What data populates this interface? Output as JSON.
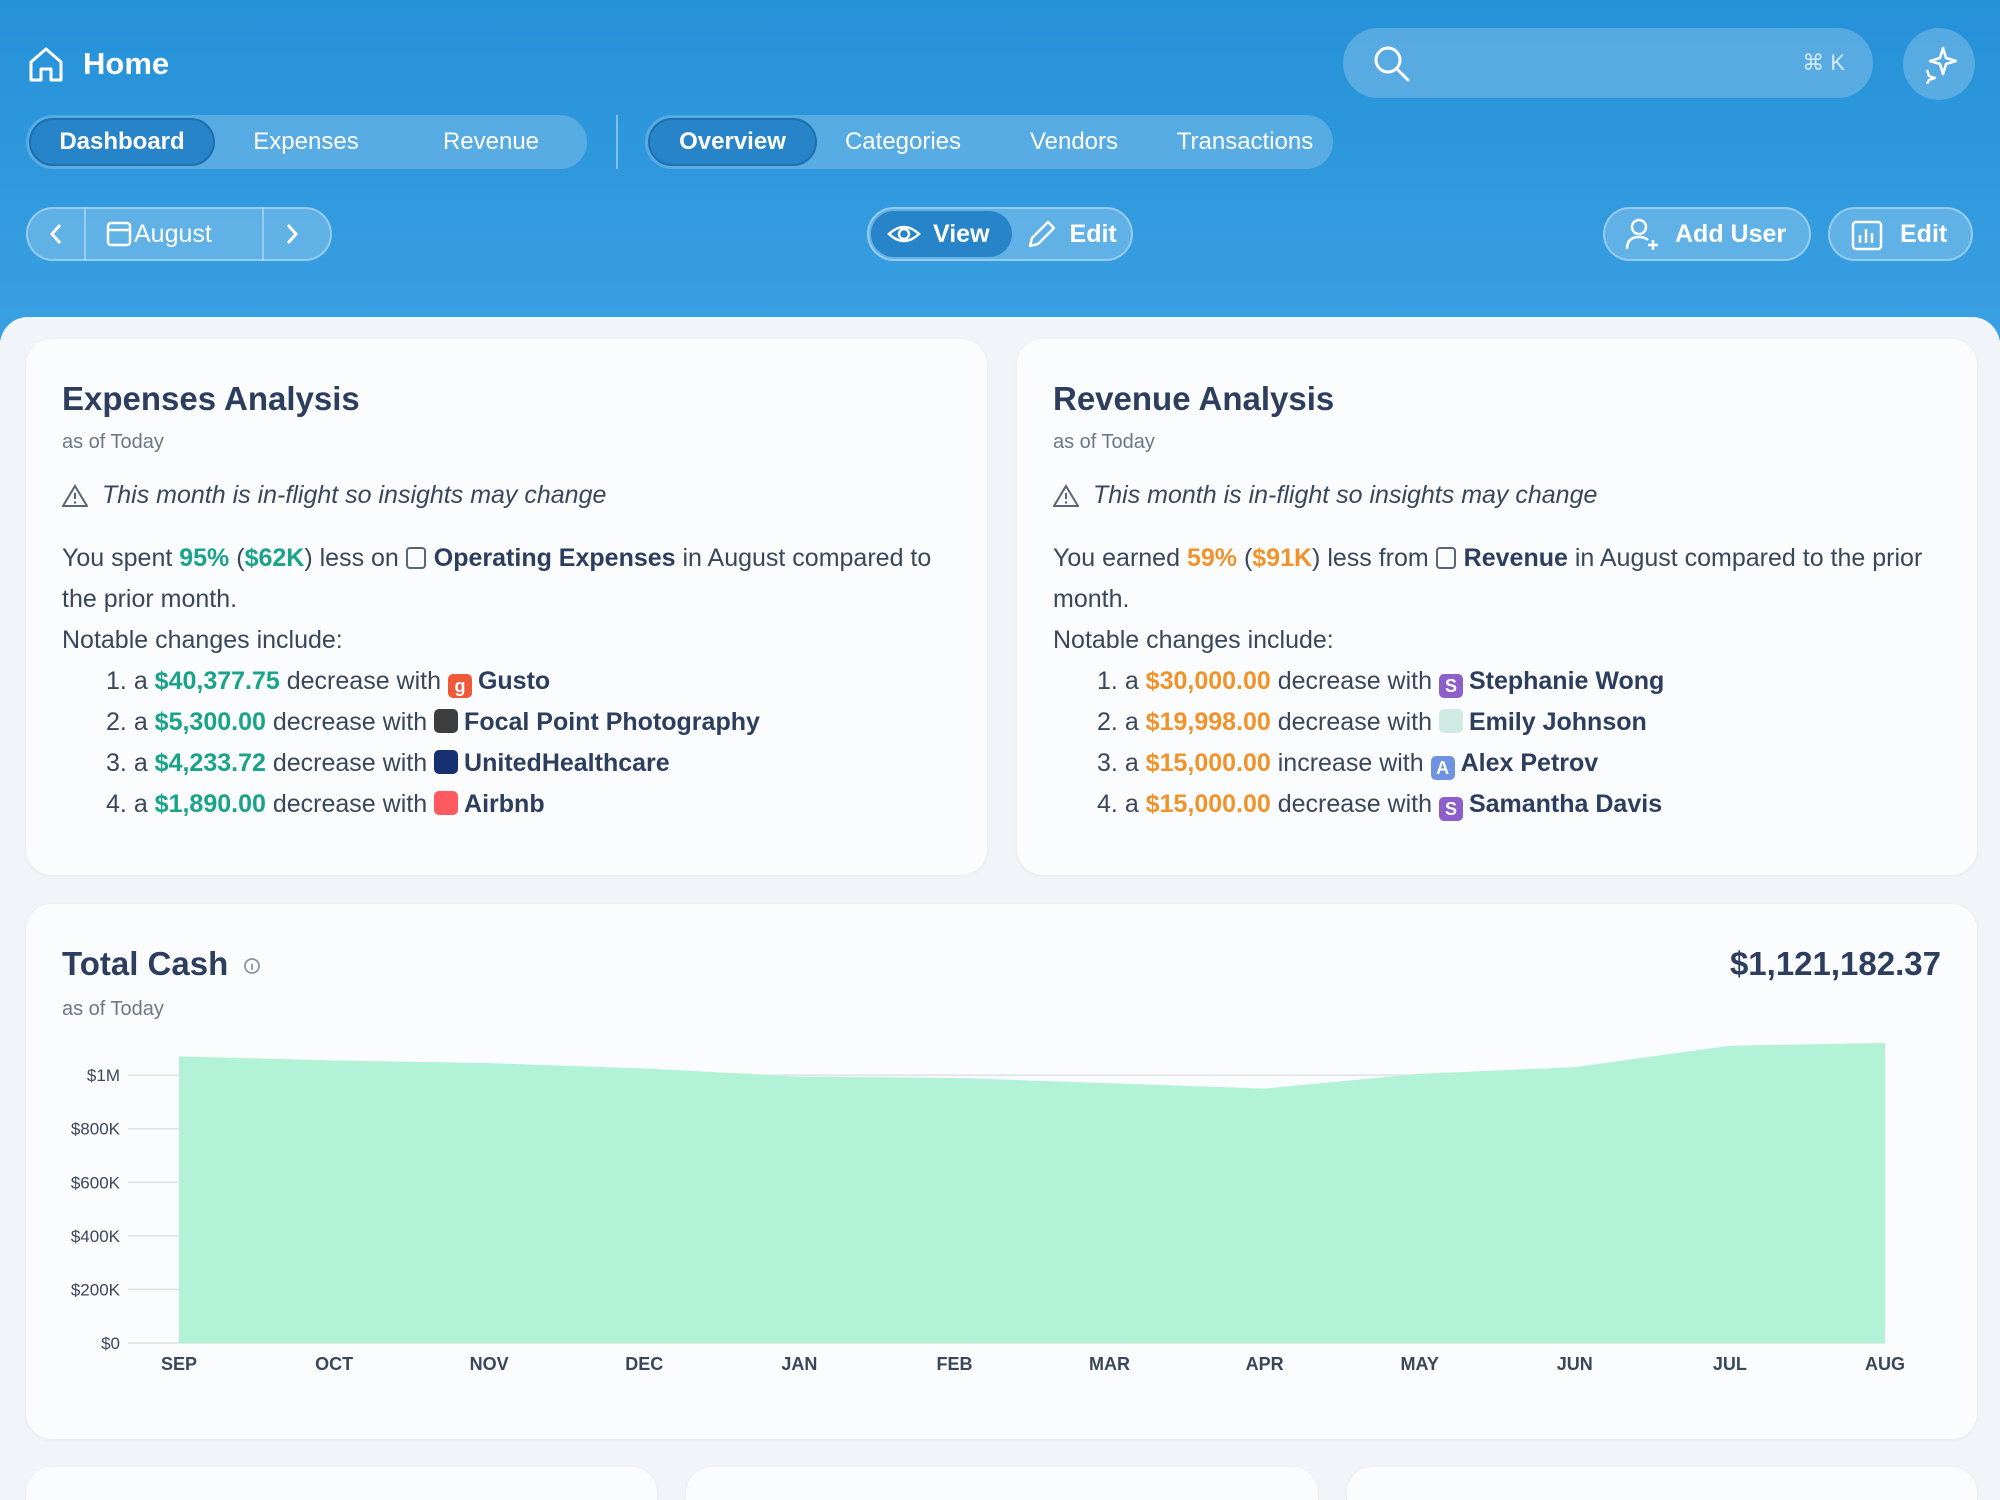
{
  "header": {
    "title": "Home",
    "search_shortcut": "⌘ K"
  },
  "tabs": {
    "primary": [
      "Dashboard",
      "Expenses",
      "Revenue"
    ],
    "secondary": [
      "Overview",
      "Categories",
      "Vendors",
      "Transactions"
    ]
  },
  "toolbar": {
    "month": "August",
    "view": "View",
    "edit": "Edit",
    "add_user": "Add User",
    "edit_chart": "Edit"
  },
  "cards": [
    {
      "title": "Expenses Analysis",
      "subtitle": "as of Today",
      "warning": "This month is in-flight so insights may change",
      "accent": "#19a389",
      "summary": {
        "lead": "You spent",
        "percent": "95%",
        "open": "(",
        "amount": "$62K",
        "close": ")",
        "connector": "less on",
        "category": "Operating Expenses",
        "tail": "in August compared to the prior month."
      },
      "notable": "Notable changes include:",
      "items": [
        {
          "number": "1.",
          "article": "a",
          "amount": "$40,377.75",
          "phrase": "decrease with",
          "name": "Gusto",
          "badge": {
            "color": "#f05a3a",
            "letter": "g"
          }
        },
        {
          "number": "2.",
          "article": "a",
          "amount": "$5,300.00",
          "phrase": "decrease with",
          "name": "Focal Point Photography",
          "badge": {
            "color": "#3d3d3d"
          }
        },
        {
          "number": "3.",
          "article": "a",
          "amount": "$4,233.72",
          "phrase": "decrease with",
          "name": "UnitedHealthcare",
          "badge": {
            "color": "#17306f"
          }
        },
        {
          "number": "4.",
          "article": "a",
          "amount": "$1,890.00",
          "phrase": "decrease with",
          "name": "Airbnb",
          "badge": {
            "color": "#ff5a5f"
          }
        }
      ]
    },
    {
      "title": "Revenue Analysis",
      "subtitle": "as of Today",
      "warning": "This month is in-flight so insights may change",
      "accent": "#f0932b",
      "summary": {
        "lead": "You earned",
        "percent": "59%",
        "open": "(",
        "amount": "$91K",
        "close": ")",
        "connector": "less from",
        "category": "Revenue",
        "tail": "in August compared to the prior month."
      },
      "notable": "Notable changes include:",
      "items": [
        {
          "number": "1.",
          "article": "a",
          "amount": "$30,000.00",
          "phrase": "decrease with",
          "name": "Stephanie Wong",
          "badge": {
            "color": "#8e5fc9",
            "letter": "S"
          }
        },
        {
          "number": "2.",
          "article": "a",
          "amount": "$19,998.00",
          "phrase": "decrease with",
          "name": "Emily Johnson",
          "badge": {
            "color": "#cfe9e3"
          }
        },
        {
          "number": "3.",
          "article": "a",
          "amount": "$15,000.00",
          "phrase": "increase with",
          "name": "Alex Petrov",
          "badge": {
            "color": "#6f92e3",
            "letter": "A"
          }
        },
        {
          "number": "4.",
          "article": "a",
          "amount": "$15,000.00",
          "phrase": "decrease with",
          "name": "Samantha Davis",
          "badge": {
            "color": "#8e5fc9",
            "letter": "S"
          }
        }
      ]
    }
  ],
  "total_cash": {
    "title": "Total Cash",
    "subtitle": "as of Today",
    "value": "$1,121,182.37"
  },
  "chart_data": {
    "type": "area",
    "categories": [
      "SEP",
      "OCT",
      "NOV",
      "DEC",
      "JAN",
      "FEB",
      "MAR",
      "APR",
      "MAY",
      "JUN",
      "JUL",
      "AUG"
    ],
    "values": [
      1070000,
      1055000,
      1045000,
      1025000,
      995000,
      990000,
      970000,
      950000,
      1005000,
      1030000,
      1110000,
      1120000
    ],
    "color": "#b2f2d6",
    "ylim": [
      0,
      1150000
    ],
    "yticks": [
      {
        "value": 0,
        "label": "$0"
      },
      {
        "value": 200000,
        "label": "$200K"
      },
      {
        "value": 400000,
        "label": "$400K"
      },
      {
        "value": 600000,
        "label": "$600K"
      },
      {
        "value": 800000,
        "label": "$800K"
      },
      {
        "value": 1000000,
        "label": "$1M"
      }
    ],
    "grid": true
  }
}
